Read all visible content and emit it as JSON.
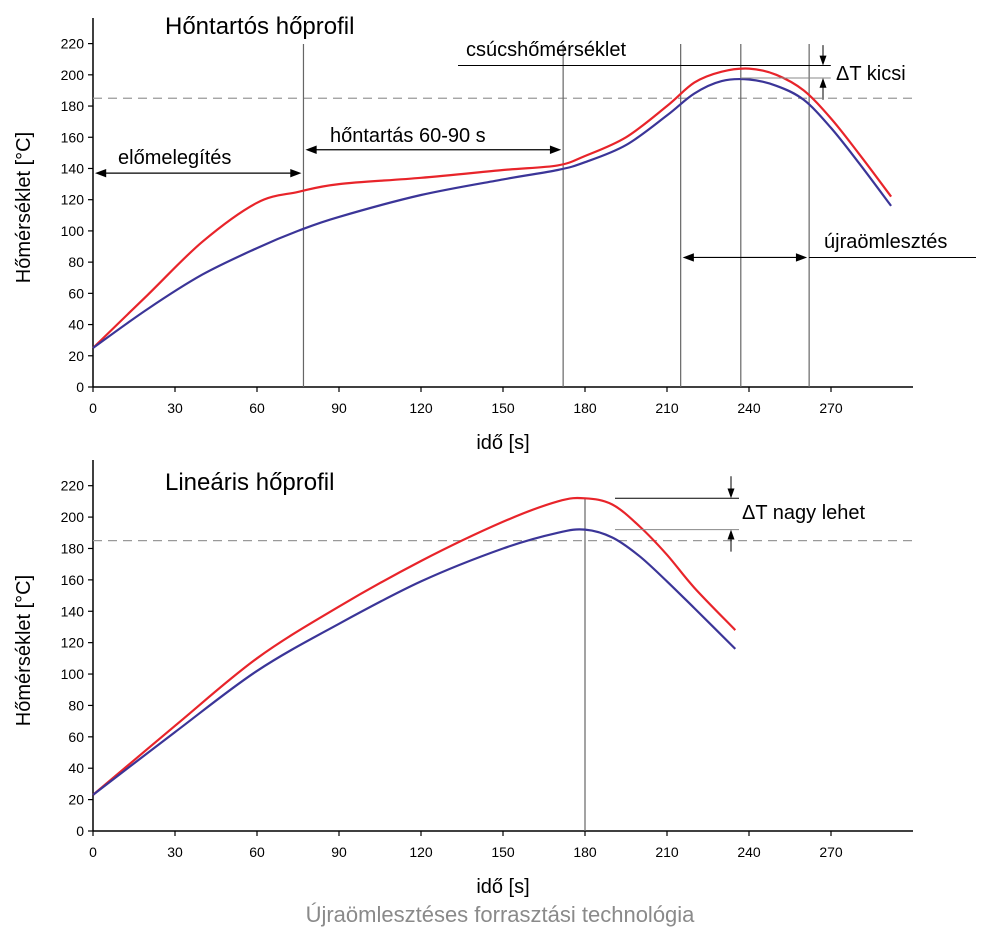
{
  "caption": "Újraömlesztéses forrasztási technológia",
  "chart_data": [
    {
      "type": "line",
      "title": "Hőntartós hőprofil",
      "xlabel": "idő [s]",
      "ylabel": "Hőmérséklet [°C]",
      "xlim": [
        0,
        300
      ],
      "ylim": [
        0,
        230
      ],
      "xticks": [
        "0",
        "30",
        "60",
        "90",
        "120",
        "150",
        "180",
        "210",
        "240",
        "270"
      ],
      "yticks": [
        "0",
        "20",
        "40",
        "60",
        "80",
        "100",
        "120",
        "140",
        "160",
        "180",
        "200",
        "220"
      ],
      "reference_line_y": 185,
      "colors": {
        "red": "#e8242a",
        "blue": "#3b3598"
      },
      "series": [
        {
          "color": "red",
          "x": [
            0,
            20,
            40,
            60,
            75,
            90,
            120,
            150,
            170,
            180,
            195,
            210,
            220,
            230,
            240,
            250,
            260,
            270,
            280,
            292
          ],
          "y": [
            25,
            59,
            93,
            118,
            125,
            130,
            134,
            139,
            142,
            148,
            160,
            180,
            195,
            202,
            204,
            200,
            190,
            172,
            150,
            122
          ]
        },
        {
          "color": "blue",
          "x": [
            0,
            20,
            40,
            60,
            75,
            90,
            120,
            150,
            170,
            180,
            195,
            210,
            220,
            230,
            240,
            250,
            260,
            270,
            280,
            292
          ],
          "y": [
            25,
            50,
            72,
            89,
            100,
            109,
            123,
            133,
            139,
            144,
            155,
            174,
            188,
            196,
            197,
            193,
            184,
            166,
            144,
            116
          ]
        }
      ],
      "vlines": [
        77,
        172,
        215,
        237,
        262
      ],
      "annotations": {
        "elomelegites": "előmelegítés",
        "hontartas": "hőntartás  60-90 s",
        "csucs": "csúcshőmérséklet",
        "dt": "ΔT kicsi",
        "ujra": "újraömlesztés"
      }
    },
    {
      "type": "line",
      "title": "Lineáris hőprofil",
      "xlabel": "idő [s]",
      "ylabel": "Hőmérséklet [°C]",
      "xlim": [
        0,
        300
      ],
      "ylim": [
        0,
        230
      ],
      "xticks": [
        "0",
        "30",
        "60",
        "90",
        "120",
        "150",
        "180",
        "210",
        "240",
        "270"
      ],
      "yticks": [
        "0",
        "20",
        "40",
        "60",
        "80",
        "100",
        "120",
        "140",
        "160",
        "180",
        "200",
        "220"
      ],
      "reference_line_y": 185,
      "colors": {
        "red": "#e8242a",
        "blue": "#3b3598"
      },
      "series": [
        {
          "color": "red",
          "x": [
            0,
            30,
            60,
            90,
            120,
            150,
            170,
            180,
            190,
            200,
            210,
            220,
            235
          ],
          "y": [
            23,
            67,
            110,
            143,
            172,
            197,
            210,
            212,
            208,
            194,
            176,
            155,
            128
          ]
        },
        {
          "color": "blue",
          "x": [
            0,
            30,
            60,
            90,
            120,
            150,
            170,
            180,
            190,
            200,
            210,
            220,
            235
          ],
          "y": [
            23,
            63,
            102,
            132,
            159,
            180,
            190,
            192,
            187,
            175,
            159,
            142,
            116
          ]
        }
      ],
      "vlines": [
        180
      ],
      "annotations": {
        "dt": "ΔT nagy lehet"
      }
    }
  ]
}
